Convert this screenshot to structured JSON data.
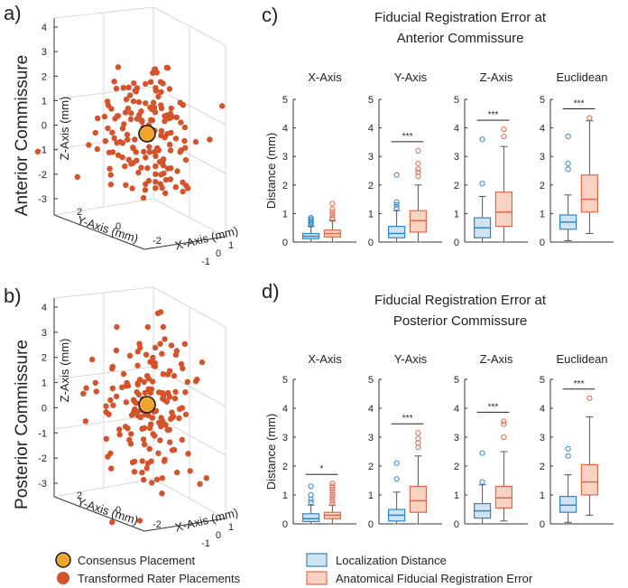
{
  "colors": {
    "rater": "#d4532b",
    "consensus_fill": "#f0a52e",
    "consensus_edge": "#1a1a1a",
    "loc_edge": "#2f86c4",
    "loc_fill": "#cfe3f3",
    "fre_edge": "#e0694a",
    "fre_fill": "#f8d3c4",
    "axis": "#333333",
    "grid": "#dcdcdc"
  },
  "panels": {
    "a": {
      "letter": "a)",
      "row_title": "Anterior Commissure"
    },
    "b": {
      "letter": "b)",
      "row_title": "Posterior Commissure"
    },
    "c": {
      "letter": "c)",
      "title_line1": "Fiducial Registration Error at",
      "title_line2": "Anterior Commissure"
    },
    "d": {
      "letter": "d)",
      "title_line1": "Fiducial Registration Error at",
      "title_line2": "Posterior Commissure"
    }
  },
  "scatter3d": {
    "z_label": "Z-Axis (mm)",
    "y_label": "Y-Axis (mm)",
    "x_label": "X-Axis (mm)",
    "z_ticks": [
      "-3",
      "-2",
      "-1",
      "0",
      "1",
      "2",
      "3",
      "4"
    ],
    "y_ticks": [
      "2",
      "0",
      "-2"
    ],
    "x_ticks": [
      "-1",
      "0",
      "1"
    ],
    "points_per_cluster": 170
  },
  "legend_left": {
    "consensus": "Consensus Placement",
    "rater": "Transformed Rater Placements"
  },
  "legend_right": {
    "loc": "Localization Distance",
    "fre": "Anatomical Fiducial Registration Error"
  },
  "chart_data": [
    {
      "type": "box",
      "title": "Fiducial Registration Error at Anterior Commissure",
      "ylabel": "Distance (mm)",
      "ylim": [
        0,
        5
      ],
      "yticks": [
        0,
        1,
        2,
        3,
        4,
        5
      ],
      "subplot_titles": [
        "X-Axis",
        "Y-Axis",
        "Z-Axis",
        "Euclidean"
      ],
      "series_names": [
        "Localization Distance",
        "Anatomical Fiducial Registration Error"
      ],
      "subplots": [
        {
          "title": "X-Axis",
          "significance": "",
          "boxes": [
            {
              "series": "Localization Distance",
              "whisker_low": 0.0,
              "q1": 0.12,
              "median": 0.2,
              "q3": 0.3,
              "whisker_high": 0.55,
              "outliers": [
                0.6,
                0.65,
                0.7,
                0.75,
                0.8,
                0.85
              ]
            },
            {
              "series": "Anatomical Fiducial Registration Error",
              "whisker_low": 0.0,
              "q1": 0.18,
              "median": 0.3,
              "q3": 0.42,
              "whisker_high": 0.75,
              "outliers": [
                0.8,
                0.85,
                0.95,
                1.05,
                1.15,
                1.35
              ]
            }
          ]
        },
        {
          "title": "Y-Axis",
          "significance": "***",
          "boxes": [
            {
              "series": "Localization Distance",
              "whisker_low": 0.0,
              "q1": 0.15,
              "median": 0.3,
              "q3": 0.55,
              "whisker_high": 1.1,
              "outliers": [
                1.2,
                1.3,
                1.4,
                2.35
              ]
            },
            {
              "series": "Anatomical Fiducial Registration Error",
              "whisker_low": 0.0,
              "q1": 0.35,
              "median": 0.75,
              "q3": 1.1,
              "whisker_high": 2.0,
              "outliers": [
                2.3,
                2.45,
                2.55,
                2.75,
                3.2
              ]
            }
          ]
        },
        {
          "title": "Z-Axis",
          "significance": "***",
          "boxes": [
            {
              "series": "Localization Distance",
              "whisker_low": 0.0,
              "q1": 0.15,
              "median": 0.5,
              "q3": 0.85,
              "whisker_high": 1.6,
              "outliers": [
                2.05,
                3.6
              ]
            },
            {
              "series": "Anatomical Fiducial Registration Error",
              "whisker_low": 0.0,
              "q1": 0.55,
              "median": 1.05,
              "q3": 1.75,
              "whisker_high": 3.35,
              "outliers": [
                3.7,
                3.95
              ]
            }
          ]
        },
        {
          "title": "Euclidean",
          "significance": "***",
          "boxes": [
            {
              "series": "Localization Distance",
              "whisker_low": 0.05,
              "q1": 0.45,
              "median": 0.7,
              "q3": 0.95,
              "whisker_high": 1.65,
              "outliers": [
                2.55,
                2.75,
                3.7
              ]
            },
            {
              "series": "Anatomical Fiducial Registration Error",
              "whisker_low": 0.3,
              "q1": 1.05,
              "median": 1.5,
              "q3": 2.35,
              "whisker_high": 4.25,
              "outliers": [
                4.35
              ]
            }
          ]
        }
      ]
    },
    {
      "type": "box",
      "title": "Fiducial Registration Error at Posterior Commissure",
      "ylabel": "Distance (mm)",
      "ylim": [
        0,
        5
      ],
      "yticks": [
        0,
        1,
        2,
        3,
        4,
        5
      ],
      "subplot_titles": [
        "X-Axis",
        "Y-Axis",
        "Z-Axis",
        "Euclidean"
      ],
      "series_names": [
        "Localization Distance",
        "Anatomical Fiducial Registration Error"
      ],
      "subplots": [
        {
          "title": "X-Axis",
          "significance": "*",
          "boxes": [
            {
              "series": "Localization Distance",
              "whisker_low": 0.0,
              "q1": 0.08,
              "median": 0.18,
              "q3": 0.35,
              "whisker_high": 0.65,
              "outliers": [
                0.75,
                0.85,
                1.0,
                1.3
              ]
            },
            {
              "series": "Anatomical Fiducial Registration Error",
              "whisker_low": 0.0,
              "q1": 0.18,
              "median": 0.3,
              "q3": 0.4,
              "whisker_high": 0.65,
              "outliers": [
                0.7,
                0.8,
                0.9,
                1.0,
                1.1,
                1.2,
                1.3,
                1.4
              ]
            }
          ]
        },
        {
          "title": "Y-Axis",
          "significance": "***",
          "boxes": [
            {
              "series": "Localization Distance",
              "whisker_low": 0.0,
              "q1": 0.1,
              "median": 0.3,
              "q3": 0.5,
              "whisker_high": 1.1,
              "outliers": [
                1.55,
                2.1
              ]
            },
            {
              "series": "Anatomical Fiducial Registration Error",
              "whisker_low": 0.0,
              "q1": 0.4,
              "median": 0.8,
              "q3": 1.3,
              "whisker_high": 2.35,
              "outliers": [
                2.65,
                2.8,
                2.95,
                3.15
              ]
            }
          ]
        },
        {
          "title": "Z-Axis",
          "significance": "***",
          "boxes": [
            {
              "series": "Localization Distance",
              "whisker_low": 0.0,
              "q1": 0.2,
              "median": 0.45,
              "q3": 0.7,
              "whisker_high": 1.35,
              "outliers": [
                1.45,
                2.45
              ]
            },
            {
              "series": "Anatomical Fiducial Registration Error",
              "whisker_low": 0.1,
              "q1": 0.55,
              "median": 0.9,
              "q3": 1.3,
              "whisker_high": 2.5,
              "outliers": [
                3.0,
                3.45,
                3.55
              ]
            }
          ]
        },
        {
          "title": "Euclidean",
          "significance": "***",
          "boxes": [
            {
              "series": "Localization Distance",
              "whisker_low": 0.05,
              "q1": 0.4,
              "median": 0.65,
              "q3": 0.95,
              "whisker_high": 1.7,
              "outliers": [
                2.35,
                2.6
              ]
            },
            {
              "series": "Anatomical Fiducial Registration Error",
              "whisker_low": 0.3,
              "q1": 1.0,
              "median": 1.45,
              "q3": 2.05,
              "whisker_high": 3.7,
              "outliers": [
                4.35
              ]
            }
          ]
        }
      ]
    }
  ]
}
